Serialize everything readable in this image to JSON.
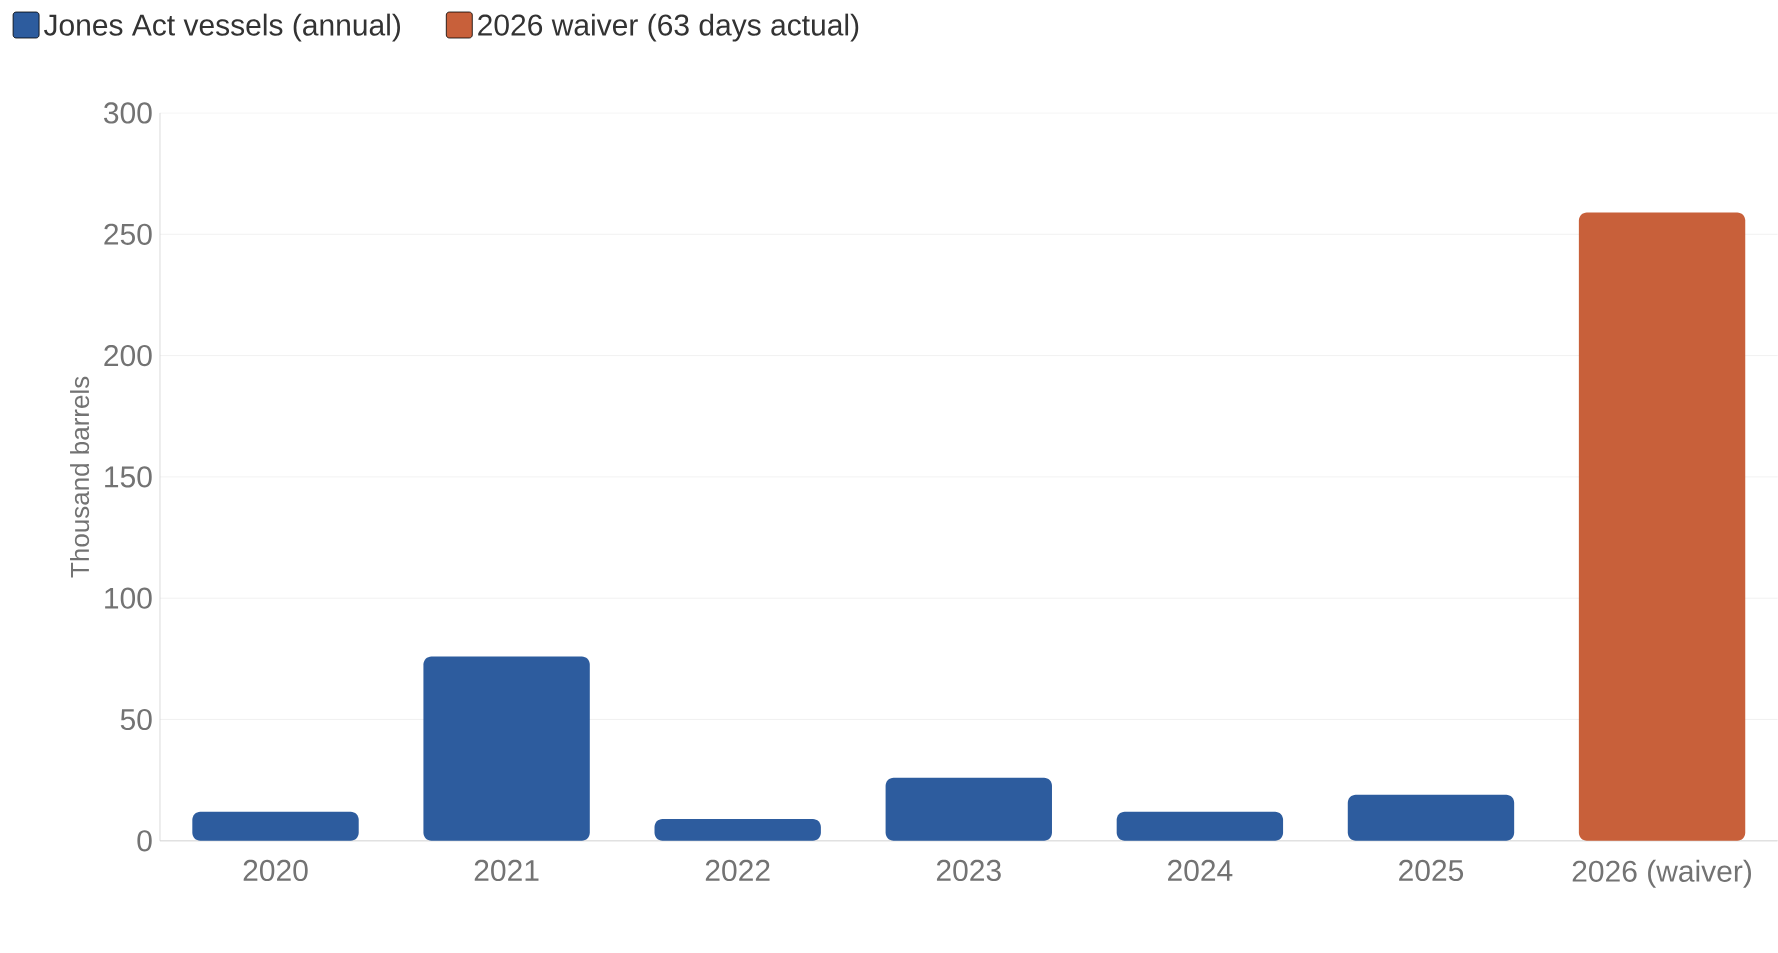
{
  "chart_data": {
    "type": "bar",
    "ylabel": "Thousand barrels",
    "categories": [
      "2020",
      "2021",
      "2022",
      "2023",
      "2024",
      "2025",
      "2026 (waiver)"
    ],
    "series": [
      {
        "name": "Jones Act vessels (annual)",
        "color": "#2d5c9e",
        "values": [
          12,
          76,
          9,
          26,
          12,
          19,
          null
        ]
      },
      {
        "name": "2026 waiver (63 days actual)",
        "color": "#c8603a",
        "values": [
          null,
          null,
          null,
          null,
          null,
          null,
          259
        ]
      }
    ],
    "ylim": [
      0,
      300
    ],
    "yticks": [
      0,
      50,
      100,
      150,
      200,
      250,
      300
    ],
    "grid": "y",
    "legend": "top left"
  }
}
